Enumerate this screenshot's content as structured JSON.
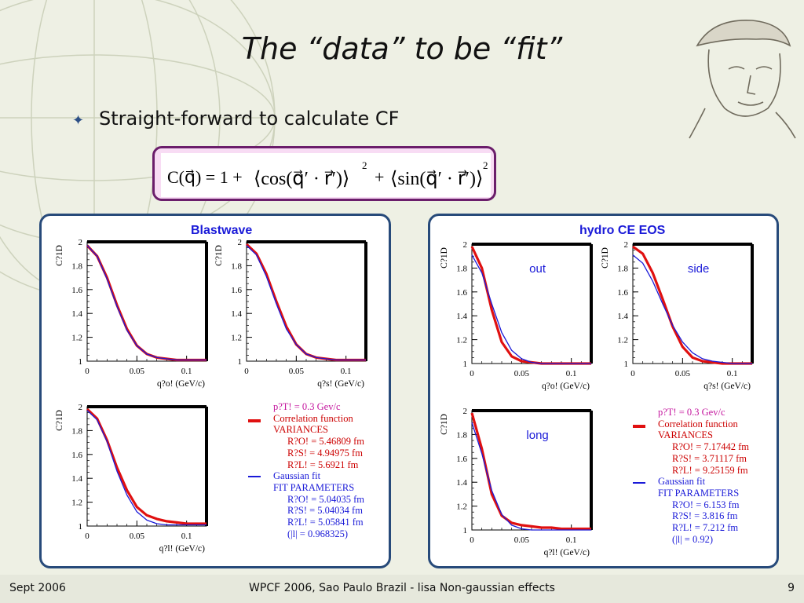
{
  "slide": {
    "title": "The “data” to be “fit”",
    "bullet": "Straight-forward to calculate CF",
    "footer_left": "Sept 2006",
    "footer_center": "WPCF 2006, Sao Paulo Brazil - lisa Non-gaussian effects",
    "footer_right": "9"
  },
  "formula": {
    "lhs": "C(q⃗) = 1 +",
    "term1": "⟨cos(q⃗′ · r⃗′)⟩",
    "sup1": "2",
    "plus": "+",
    "term2": "⟨sin(q⃗′ · r⃗′)⟩",
    "sup2": "2"
  },
  "legends": {
    "left": {
      "pt": "p?T! = 0.3 Gev/c",
      "cf": "Correlation function",
      "variances": "VARIANCES",
      "var": [
        "R?O! = 5.46809 fm",
        "R?S! = 4.94975 fm",
        "R?L! = 5.6921 fm"
      ],
      "gauss": "Gaussian fit",
      "fitpar": "FIT PARAMETERS",
      "fit": [
        "R?O! = 5.04035 fm",
        "R?S! = 5.04034 fm",
        "R?L! = 5.05841 fm",
        "(|l| = 0.968325)"
      ]
    },
    "right": {
      "pt": "p?T! = 0.3 Gev/c",
      "cf": "Correlation function",
      "variances": "VARIANCES",
      "var": [
        "R?O! = 7.17442 fm",
        "R?S! = 3.71117 fm",
        "R?L! = 9.25159 fm"
      ],
      "gauss": "Gaussian fit",
      "fitpar": "FIT PARAMETERS",
      "fit": [
        "R?O! = 6.153 fm",
        "R?S! = 3.816 fm",
        "R?L! = 7.212 fm",
        "(|l| = 0.92)"
      ]
    }
  },
  "colors": {
    "data": "#e01010",
    "fit": "#1a1ad8",
    "panel_border": "#274a7a",
    "formula_border": "#6b1e6b",
    "formula_bg": "#f8dcf4"
  },
  "chart_data": [
    {
      "type": "line",
      "group": "Blastwave",
      "title": "Blastwave",
      "label": "",
      "xlabel": "q?o! (GeV/c)",
      "ylabel": "C?1D",
      "xlim": [
        0,
        0.12
      ],
      "ylim": [
        1,
        2
      ],
      "xticks": [
        "0",
        "0.05",
        "0.1"
      ],
      "yticks": [
        "1",
        "1.2",
        "1.4",
        "1.6",
        "1.8",
        "2"
      ],
      "x": [
        0,
        0.01,
        0.02,
        0.03,
        0.04,
        0.05,
        0.06,
        0.07,
        0.08,
        0.09,
        0.1,
        0.12
      ],
      "series": [
        {
          "values": [
            1.97,
            1.88,
            1.7,
            1.47,
            1.27,
            1.13,
            1.06,
            1.03,
            1.02,
            1.01,
            1.01,
            1.01
          ]
        },
        {
          "values": [
            1.97,
            1.88,
            1.69,
            1.46,
            1.26,
            1.13,
            1.06,
            1.03,
            1.02,
            1.01,
            1.01,
            1.01
          ]
        }
      ]
    },
    {
      "type": "line",
      "group": "Blastwave",
      "label": "",
      "xlabel": "q?s! (GeV/c)",
      "ylabel": "C?1D",
      "xlim": [
        0,
        0.12
      ],
      "ylim": [
        1,
        2
      ],
      "xticks": [
        "0",
        "0.05",
        "0.1"
      ],
      "yticks": [
        "1",
        "1.2",
        "1.4",
        "1.6",
        "1.8",
        "2"
      ],
      "x": [
        0,
        0.01,
        0.02,
        0.03,
        0.04,
        0.05,
        0.06,
        0.07,
        0.08,
        0.09,
        0.1,
        0.12
      ],
      "series": [
        {
          "values": [
            1.98,
            1.9,
            1.73,
            1.5,
            1.29,
            1.14,
            1.06,
            1.03,
            1.02,
            1.01,
            1.01,
            1.01
          ]
        },
        {
          "values": [
            1.97,
            1.89,
            1.71,
            1.48,
            1.27,
            1.14,
            1.06,
            1.03,
            1.02,
            1.01,
            1.01,
            1.01
          ]
        }
      ]
    },
    {
      "type": "line",
      "group": "Blastwave",
      "label": "",
      "xlabel": "q?l! (GeV/c)",
      "ylabel": "C?1D",
      "xlim": [
        0,
        0.12
      ],
      "ylim": [
        1,
        2
      ],
      "xticks": [
        "0",
        "0.05",
        "0.1"
      ],
      "yticks": [
        "1",
        "1.2",
        "1.4",
        "1.6",
        "1.8",
        "2"
      ],
      "x": [
        0,
        0.01,
        0.02,
        0.03,
        0.04,
        0.05,
        0.06,
        0.07,
        0.08,
        0.09,
        0.1,
        0.12
      ],
      "series": [
        {
          "values": [
            1.98,
            1.9,
            1.72,
            1.49,
            1.3,
            1.16,
            1.09,
            1.06,
            1.04,
            1.03,
            1.02,
            1.02
          ]
        },
        {
          "values": [
            1.97,
            1.89,
            1.71,
            1.46,
            1.26,
            1.12,
            1.05,
            1.02,
            1.01,
            1.01,
            1.01,
            1.01
          ]
        }
      ]
    },
    {
      "type": "line",
      "group": "hydro CE EOS",
      "title": "hydro CE EOS",
      "label": "out",
      "xlabel": "q?o! (GeV/c)",
      "ylabel": "C?1D",
      "xlim": [
        0,
        0.12
      ],
      "ylim": [
        1,
        2
      ],
      "xticks": [
        "0",
        "0.05",
        "0.1"
      ],
      "yticks": [
        "1",
        "1.2",
        "1.4",
        "1.6",
        "1.8",
        "2"
      ],
      "x": [
        0,
        0.01,
        0.02,
        0.03,
        0.04,
        0.05,
        0.06,
        0.07,
        0.08,
        0.09,
        0.1,
        0.12
      ],
      "series": [
        {
          "values": [
            1.98,
            1.8,
            1.45,
            1.18,
            1.06,
            1.02,
            1.01,
            1.0,
            1.0,
            1.0,
            1.0,
            1.0
          ]
        },
        {
          "values": [
            1.91,
            1.76,
            1.5,
            1.26,
            1.11,
            1.04,
            1.01,
            1.0,
            1.0,
            1.0,
            1.0,
            1.0
          ]
        }
      ]
    },
    {
      "type": "line",
      "group": "hydro CE EOS",
      "label": "side",
      "xlabel": "q?s! (GeV/c)",
      "ylabel": "C?1D",
      "xlim": [
        0,
        0.12
      ],
      "ylim": [
        1,
        2
      ],
      "xticks": [
        "0",
        "0.05",
        "0.1"
      ],
      "yticks": [
        "1",
        "1.2",
        "1.4",
        "1.6",
        "1.8",
        "2"
      ],
      "x": [
        0,
        0.01,
        0.02,
        0.03,
        0.04,
        0.05,
        0.06,
        0.07,
        0.08,
        0.09,
        0.1,
        0.12
      ],
      "series": [
        {
          "values": [
            1.98,
            1.92,
            1.76,
            1.54,
            1.31,
            1.14,
            1.05,
            1.02,
            1.01,
            1.0,
            1.0,
            1.0
          ]
        },
        {
          "values": [
            1.91,
            1.84,
            1.69,
            1.5,
            1.32,
            1.18,
            1.09,
            1.04,
            1.02,
            1.01,
            1.0,
            1.0
          ]
        }
      ]
    },
    {
      "type": "line",
      "group": "hydro CE EOS",
      "label": "long",
      "xlabel": "q?l! (GeV/c)",
      "ylabel": "C?1D",
      "xlim": [
        0,
        0.12
      ],
      "ylim": [
        1,
        2
      ],
      "xticks": [
        "0",
        "0.05",
        "0.1"
      ],
      "yticks": [
        "1",
        "1.2",
        "1.4",
        "1.6",
        "1.8",
        "2"
      ],
      "x": [
        0,
        0.01,
        0.02,
        0.03,
        0.04,
        0.05,
        0.06,
        0.07,
        0.08,
        0.09,
        0.1,
        0.12
      ],
      "series": [
        {
          "values": [
            1.98,
            1.68,
            1.3,
            1.12,
            1.06,
            1.04,
            1.03,
            1.02,
            1.02,
            1.01,
            1.01,
            1.01
          ]
        },
        {
          "values": [
            1.9,
            1.64,
            1.33,
            1.13,
            1.04,
            1.01,
            1.0,
            1.0,
            1.0,
            1.0,
            1.0,
            1.0
          ]
        }
      ]
    }
  ]
}
